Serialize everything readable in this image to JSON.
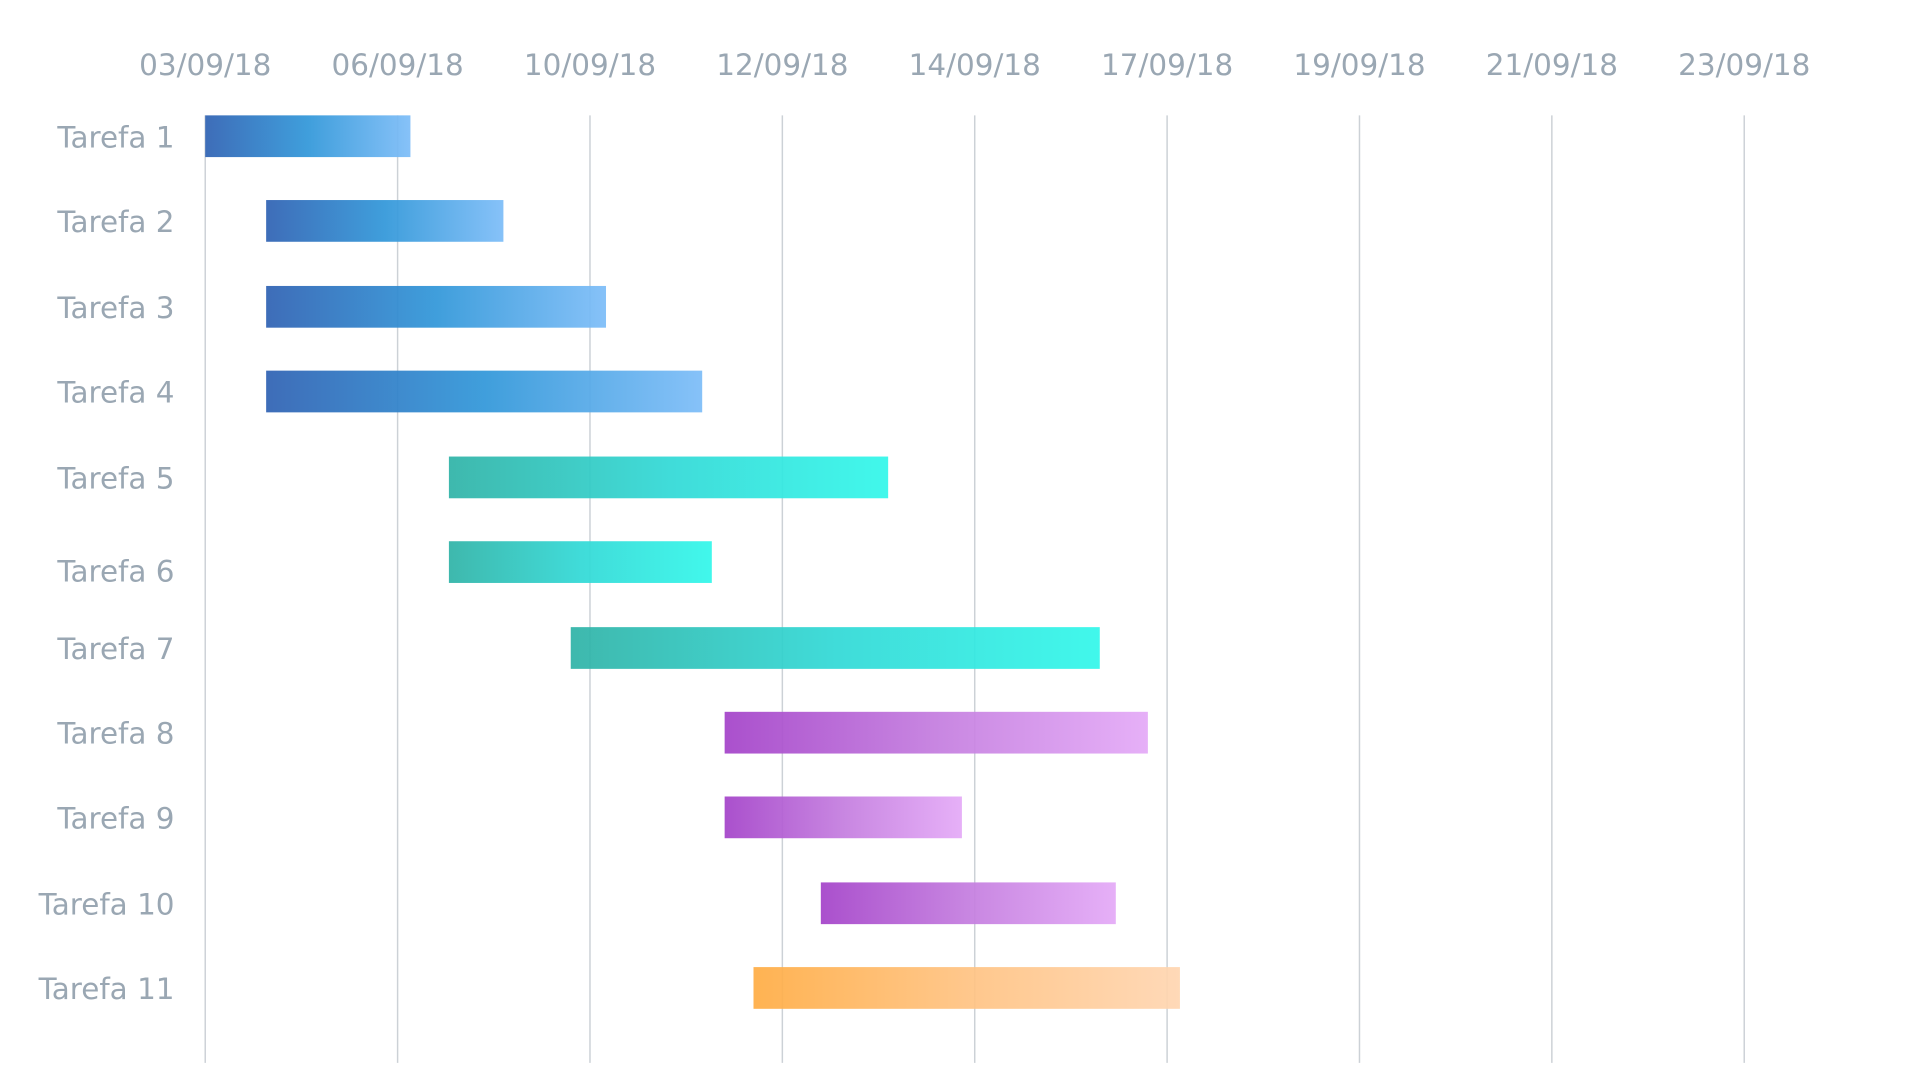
{
  "chart_data": {
    "type": "gantt",
    "title": "",
    "xlabel": "",
    "ylabel": "",
    "x_axis_position": "top",
    "grid": {
      "vertical": true,
      "horizontal": false,
      "color": "#ccd1d6"
    },
    "xlim": [
      "2018-09-03T00:00",
      "2018-09-23T00:00"
    ],
    "x_tick_labels": [
      "03/09/18",
      "06/09/18",
      "10/09/18",
      "12/09/18",
      "14/09/18",
      "17/09/18",
      "19/09/18",
      "21/09/18",
      "23/09/18"
    ],
    "label_color": "#9aa7b3",
    "groups": {
      "blue": {
        "from": "#2f62b3",
        "mid": "#3197d9",
        "to": "#7dbdf8"
      },
      "teal": {
        "from": "#30b3a7",
        "mid": "#32d9d6",
        "to": "#33f7ea"
      },
      "purple": {
        "from": "#a443c9",
        "mid": "#c47ddf",
        "to": "#e4aaf7"
      },
      "orange": {
        "from": "#ffad45",
        "mid": "#ffc383",
        "to": "#ffd6b2"
      }
    },
    "tasks": [
      {
        "name": "Tarefa 1",
        "start": "2018-09-03T00:00",
        "end": "2018-09-05T16:00",
        "group": "blue"
      },
      {
        "name": "Tarefa 2",
        "start": "2018-09-03T19:00",
        "end": "2018-09-06T21:00",
        "group": "blue"
      },
      {
        "name": "Tarefa 3",
        "start": "2018-09-03T19:00",
        "end": "2018-09-08T05:00",
        "group": "blue"
      },
      {
        "name": "Tarefa 4",
        "start": "2018-09-03T19:00",
        "end": "2018-09-09T11:00",
        "group": "blue"
      },
      {
        "name": "Tarefa 5",
        "start": "2018-09-06T04:00",
        "end": "2018-09-11T21:00",
        "group": "teal"
      },
      {
        "name": "Tarefa 6",
        "start": "2018-09-06T04:00",
        "end": "2018-09-09T14:00",
        "group": "teal"
      },
      {
        "name": "Tarefa 7",
        "start": "2018-09-07T18:00",
        "end": "2018-09-14T15:00",
        "group": "teal"
      },
      {
        "name": "Tarefa 8",
        "start": "2018-09-09T18:00",
        "end": "2018-09-15T06:00",
        "group": "purple"
      },
      {
        "name": "Tarefa 9",
        "start": "2018-09-09T18:00",
        "end": "2018-09-12T20:00",
        "group": "purple"
      },
      {
        "name": "Tarefa 10",
        "start": "2018-09-11T00:00",
        "end": "2018-09-14T20:00",
        "group": "purple"
      },
      {
        "name": "Tarefa 11",
        "start": "2018-09-10T03:00",
        "end": "2018-09-15T16:00",
        "group": "orange"
      }
    ]
  }
}
